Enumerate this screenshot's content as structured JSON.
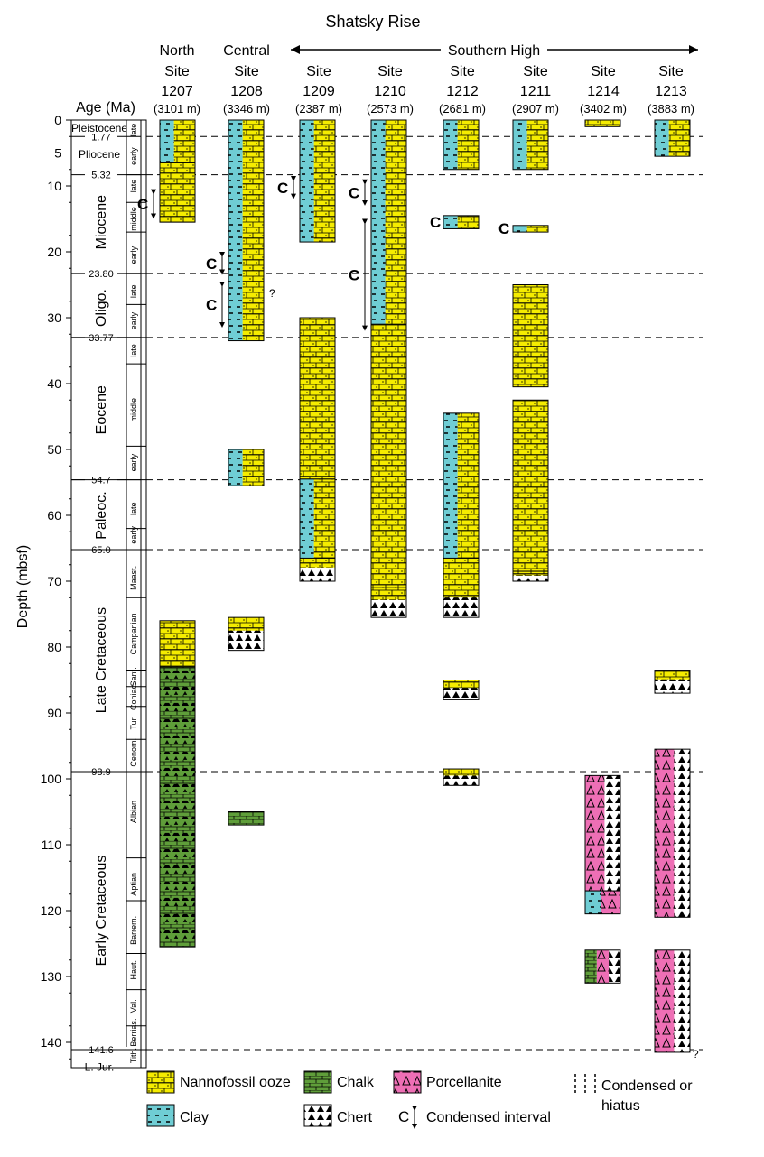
{
  "title": "Shatsky Rise",
  "region_label": "Southern High",
  "y_axis_label": "Depth (mbsf)",
  "age_header": "Age (Ma)",
  "age_ticks": [
    "1.77",
    "5.32",
    "23.80",
    "33.77",
    "54.7",
    "65.0",
    "98.9",
    "141.6"
  ],
  "depth_ticks": [
    "0",
    "5",
    "10",
    "20",
    "30",
    "40",
    "50",
    "60",
    "70",
    "80",
    "90",
    "100",
    "110",
    "120",
    "130",
    "140"
  ],
  "epochs": [
    "Pleistocene",
    "Pliocene",
    "Miocene",
    "Oligo.",
    "Eocene",
    "Paleoc.",
    "Late Cretaceous",
    "Early Cretaceous",
    "L. Jur."
  ],
  "stages": [
    "late",
    "early",
    "late",
    "middle",
    "early",
    "late",
    "early",
    "late",
    "middle",
    "early",
    "late",
    "early",
    "Maast.",
    "Campanian",
    "Sant.",
    "Coniac.",
    "Tur.",
    "Cenom.",
    "Albian",
    "Aptian",
    "Barrem.",
    "Haut.",
    "Val.",
    "Berrias.",
    "Tith."
  ],
  "sites": [
    {
      "region": "North",
      "name": "Site",
      "number": "1207",
      "depth": "(3101 m)"
    },
    {
      "region": "Central",
      "name": "Site",
      "number": "1208",
      "depth": "(3346 m)"
    },
    {
      "region": "",
      "name": "Site",
      "number": "1209",
      "depth": "(2387 m)"
    },
    {
      "region": "",
      "name": "Site",
      "number": "1210",
      "depth": "(2573 m)"
    },
    {
      "region": "",
      "name": "Site",
      "number": "1212",
      "depth": "(2681 m)"
    },
    {
      "region": "",
      "name": "Site",
      "number": "1211",
      "depth": "(2907 m)"
    },
    {
      "region": "",
      "name": "Site",
      "number": "1214",
      "depth": "(3402 m)"
    },
    {
      "region": "",
      "name": "Site",
      "number": "1213",
      "depth": "(3883 m)"
    }
  ],
  "condensed_marker": "C",
  "uncertain_marker": "?",
  "legend": {
    "nanno": "Nannofossil ooze",
    "chalk": "Chalk",
    "porc": "Porcellanite",
    "hiatus_line1": "Condensed or",
    "hiatus_line2": "hiatus",
    "clay": "Clay",
    "chert": "Chert",
    "condensed_interval": "Condensed interval",
    "c_symbol": "C"
  },
  "colors": {
    "nanno": "#f5ec00",
    "clay": "#6fcdd4",
    "chalk": "#5f9e3a",
    "porc": "#ee6fb5",
    "chert_bg": "#ffffff"
  },
  "diagram_data": {
    "depth_range_mbsf": [
      0,
      143
    ],
    "columns": [
      {
        "site": "1207",
        "units": [
          {
            "lith": "nanno_clay",
            "top": 0,
            "base": 6.5
          },
          {
            "lith": "nanno",
            "top": 6.5,
            "base": 15.5
          },
          {
            "lith": "nanno",
            "top": 76,
            "base": 83
          },
          {
            "lith": "chalk_chert",
            "top": 83,
            "base": 125.5
          }
        ],
        "condensed": [
          {
            "top": 10.5,
            "base": 15
          }
        ]
      },
      {
        "site": "1208",
        "units": [
          {
            "lith": "nanno_clay",
            "top": 0,
            "base": 33.5
          },
          {
            "lith": "nanno_clay",
            "top": 50,
            "base": 55.5
          },
          {
            "lith": "nanno_chert",
            "top": 75.5,
            "base": 80.5
          },
          {
            "lith": "chalk",
            "top": 105,
            "base": 107
          }
        ],
        "condensed": [
          {
            "top": 20,
            "base": 23.5
          },
          {
            "top": 24.5,
            "base": 31.5
          }
        ]
      },
      {
        "site": "1209",
        "units": [
          {
            "lith": "nanno_clay",
            "top": 0,
            "base": 18.5
          },
          {
            "lith": "nanno",
            "top": 30,
            "base": 54.5
          },
          {
            "lith": "nanno_clay",
            "top": 54.5,
            "base": 66.5
          },
          {
            "lith": "nanno_chert",
            "top": 66.5,
            "base": 70
          }
        ],
        "condensed": [
          {
            "top": 8.5,
            "base": 12
          }
        ]
      },
      {
        "site": "1210",
        "units": [
          {
            "lith": "nanno_clay",
            "top": 0,
            "base": 31
          },
          {
            "lith": "nanno",
            "top": 31,
            "base": 71
          },
          {
            "lith": "nanno_chert",
            "top": 71,
            "base": 75.5
          }
        ],
        "condensed": [
          {
            "top": 9,
            "base": 13
          },
          {
            "top": 15,
            "base": 32
          }
        ]
      },
      {
        "site": "1212",
        "units": [
          {
            "lith": "nanno_clay",
            "top": 0,
            "base": 7.5
          },
          {
            "lith": "nanno_clay",
            "top": 14.5,
            "base": 16.5
          },
          {
            "lith": "nanno_clay",
            "top": 44.5,
            "base": 66.5
          },
          {
            "lith": "nanno_chert",
            "top": 66.5,
            "base": 75.5
          },
          {
            "lith": "nanno_chert",
            "top": 85,
            "base": 88
          },
          {
            "lith": "nanno_chert",
            "top": 98.5,
            "base": 101
          }
        ],
        "condensed": []
      },
      {
        "site": "1211",
        "units": [
          {
            "lith": "nanno_clay",
            "top": 0,
            "base": 7.5
          },
          {
            "lith": "nanno_clay",
            "top": 16,
            "base": 17
          },
          {
            "lith": "nanno",
            "top": 25,
            "base": 40.5
          },
          {
            "lith": "nanno",
            "top": 42.5,
            "base": 68.5
          },
          {
            "lith": "nanno_chert",
            "top": 68.5,
            "base": 70
          }
        ],
        "condensed": []
      },
      {
        "site": "1214",
        "units": [
          {
            "lith": "nanno",
            "top": 0,
            "base": 1
          },
          {
            "lith": "porc_chert",
            "top": 99.5,
            "base": 117
          },
          {
            "lith": "clay_porc",
            "top": 117,
            "base": 120.5
          },
          {
            "lith": "chalk_porc_chert",
            "top": 126,
            "base": 131
          }
        ],
        "condensed": []
      },
      {
        "site": "1213",
        "units": [
          {
            "lith": "nanno_clay",
            "top": 0,
            "base": 5.5
          },
          {
            "lith": "nanno_chert",
            "top": 83.5,
            "base": 87
          },
          {
            "lith": "porc_chert",
            "top": 95.5,
            "base": 121
          },
          {
            "lith": "porc_chert",
            "top": 126,
            "base": 141.5
          }
        ],
        "condensed": []
      }
    ]
  }
}
